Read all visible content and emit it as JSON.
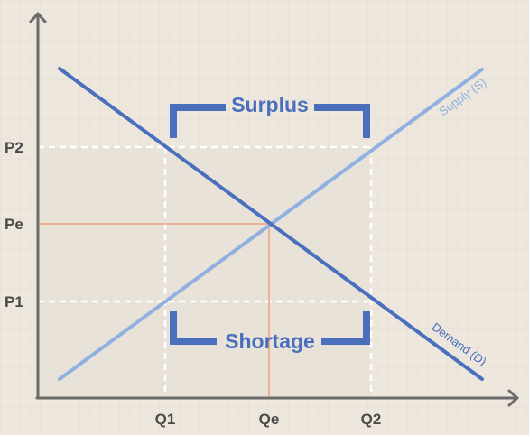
{
  "colors": {
    "background": "#ede7de",
    "grid": "#e2dcd2",
    "axis": "#6b6b6b",
    "demand": "#4a6fbd",
    "supply": "#8fb0e0",
    "equilibrium": "#f2a27e",
    "dashed": "#ffffff",
    "shaded": "#e7e1d8",
    "bracket": "#4a6fbd",
    "tick_text": "#4a4a4a"
  },
  "y_ticks": {
    "p2": "P2",
    "pe": "Pe",
    "p1": "P1"
  },
  "x_ticks": {
    "q1": "Q1",
    "qe": "Qe",
    "q2": "Q2"
  },
  "surplus_label": "Surplus",
  "shortage_label": "Shortage",
  "supply_label": "Supply (S)",
  "demand_label": "Demand (D)"
}
